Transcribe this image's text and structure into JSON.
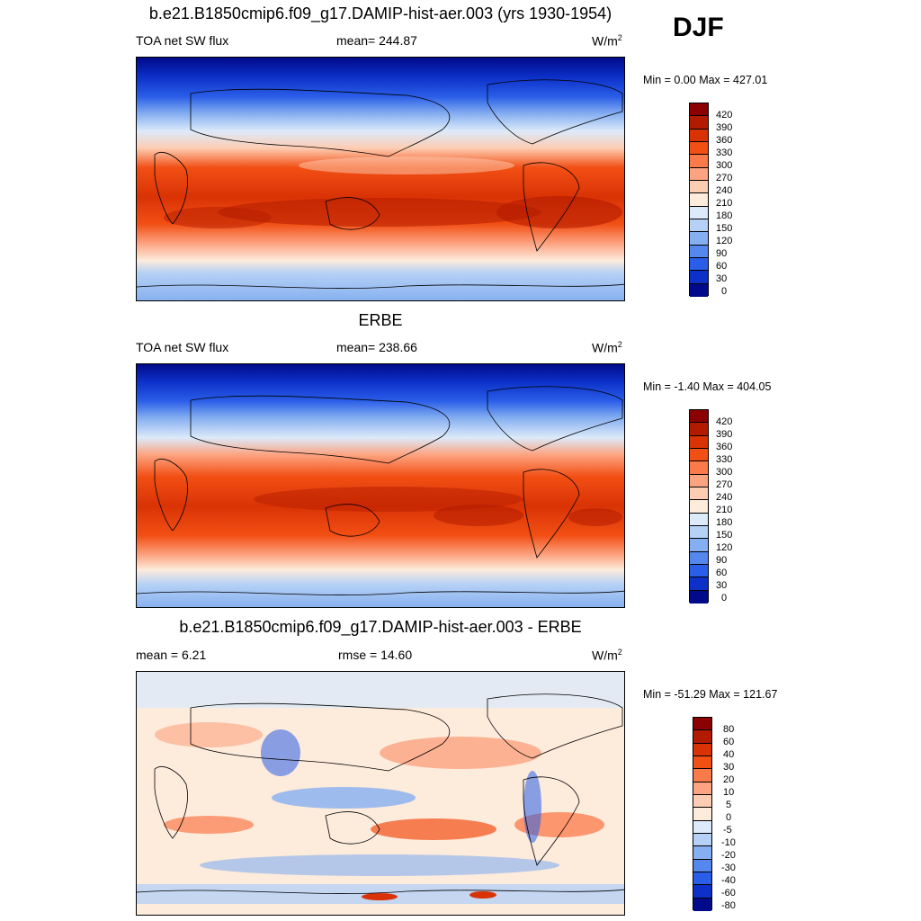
{
  "season": "DJF",
  "panels": [
    {
      "id": "model",
      "title": "b.e21.B1850cmip6.f09_g17.DAMIP-hist-aer.003 (yrs 1930-1954)",
      "left_label": "TOA net SW flux",
      "center_label": "mean= 244.87",
      "units_base": "W/m",
      "units_exp": "2",
      "minmax": "Min =   0.00 Max = 427.01",
      "colorbar_ticks": [
        "420",
        "390",
        "360",
        "330",
        "300",
        "270",
        "240",
        "210",
        "180",
        "150",
        "120",
        "90",
        "60",
        "30",
        "0"
      ]
    },
    {
      "id": "obs",
      "title": "ERBE",
      "left_label": "TOA net SW flux",
      "center_label": "mean= 238.66",
      "units_base": "W/m",
      "units_exp": "2",
      "minmax": "Min =  -1.40 Max = 404.05",
      "colorbar_ticks": [
        "420",
        "390",
        "360",
        "330",
        "300",
        "270",
        "240",
        "210",
        "180",
        "150",
        "120",
        "90",
        "60",
        "30",
        "0"
      ]
    },
    {
      "id": "diff",
      "title": "b.e21.B1850cmip6.f09_g17.DAMIP-hist-aer.003 - ERBE",
      "left_label": "mean =   6.21",
      "center_label": "rmse =  14.60",
      "units_base": "W/m",
      "units_exp": "2",
      "minmax": "Min = -51.29 Max = 121.67",
      "colorbar_ticks": [
        "80",
        "60",
        "40",
        "30",
        "20",
        "10",
        "5",
        "0",
        "-5",
        "-10",
        "-20",
        "-30",
        "-40",
        "-60",
        "-80"
      ]
    }
  ],
  "colors": {
    "abs_scale": [
      "#8b0000",
      "#b31b00",
      "#d93305",
      "#f24f14",
      "#fb7a4a",
      "#fca381",
      "#fdcdb3",
      "#fdebdc",
      "#dceafa",
      "#b5d1f5",
      "#85aff0",
      "#5588ee",
      "#2a5ee8",
      "#0c30c8",
      "#000a8a"
    ],
    "diff_scale": [
      "#8b0000",
      "#b31b00",
      "#d93305",
      "#f24f14",
      "#fb7a4a",
      "#fca381",
      "#fdcdb3",
      "#fdebdc",
      "#dceafa",
      "#b5d1f5",
      "#85aff0",
      "#5588ee",
      "#2a5ee8",
      "#0c30c8",
      "#000a8a"
    ]
  }
}
